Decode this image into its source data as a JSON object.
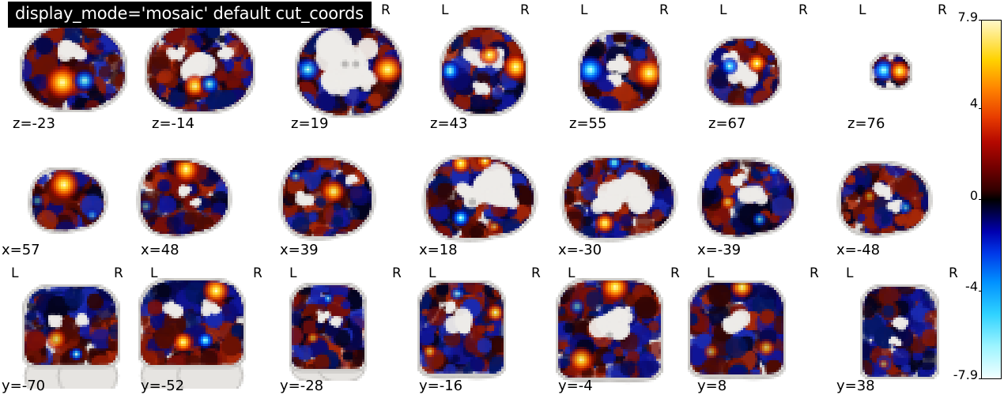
{
  "title": "display_mode='mosaic' default cut_coords",
  "orientation_labels": {
    "left": "L",
    "right": "R"
  },
  "figure": {
    "background": "#ffffff",
    "rows": [
      {
        "orientation": "axial",
        "axis": "z",
        "has_lr_labels": true,
        "slices": [
          {
            "label": "z=-23"
          },
          {
            "label": "z=-14"
          },
          {
            "label": "z=19"
          },
          {
            "label": "z=43"
          },
          {
            "label": "z=55"
          },
          {
            "label": "z=67"
          },
          {
            "label": "z=76"
          }
        ]
      },
      {
        "orientation": "sagittal",
        "axis": "x",
        "has_lr_labels": false,
        "slices": [
          {
            "label": "x=57"
          },
          {
            "label": "x=48"
          },
          {
            "label": "x=39"
          },
          {
            "label": "x=18"
          },
          {
            "label": "x=-30"
          },
          {
            "label": "x=-39"
          },
          {
            "label": "x=-48"
          }
        ]
      },
      {
        "orientation": "coronal",
        "axis": "y",
        "has_lr_labels": true,
        "slices": [
          {
            "label": "y=-70"
          },
          {
            "label": "y=-52"
          },
          {
            "label": "y=-28"
          },
          {
            "label": "y=-16"
          },
          {
            "label": "y=-4"
          },
          {
            "label": "y=8"
          },
          {
            "label": "y=38"
          }
        ]
      }
    ]
  },
  "colorbar": {
    "vmax": 7.9,
    "vmin": -7.9,
    "ticks": [
      "7.9",
      "4",
      "0",
      "-4",
      "-7.9"
    ],
    "colormap": "cold_hot",
    "colors": {
      "positive_max": "#fff8c8",
      "positive_mid": "#ff8400",
      "zero": "#000000",
      "negative_mid": "#0090ff",
      "negative_max": "#f2ffff"
    }
  },
  "chart_data": {
    "type": "heatmap",
    "title": "display_mode='mosaic' default cut_coords",
    "description": "Statistical brain map plotted as mosaic of axial (z), sagittal (x) and coronal (y) cuts over a gray anatomical template",
    "cut_coords": {
      "z": [
        -23,
        -14,
        19,
        43,
        55,
        67,
        76
      ],
      "x": [
        57,
        48,
        39,
        18,
        -30,
        -39,
        -48
      ],
      "y": [
        -70,
        -52,
        -28,
        -16,
        -4,
        8,
        38
      ]
    },
    "colorbar": {
      "vmin": -7.9,
      "vmax": 7.9,
      "ticks": [
        7.9,
        4,
        0,
        -4,
        -7.9
      ],
      "colormap": "cold_hot",
      "position": "right"
    },
    "legend_position": "right",
    "grid": false
  }
}
